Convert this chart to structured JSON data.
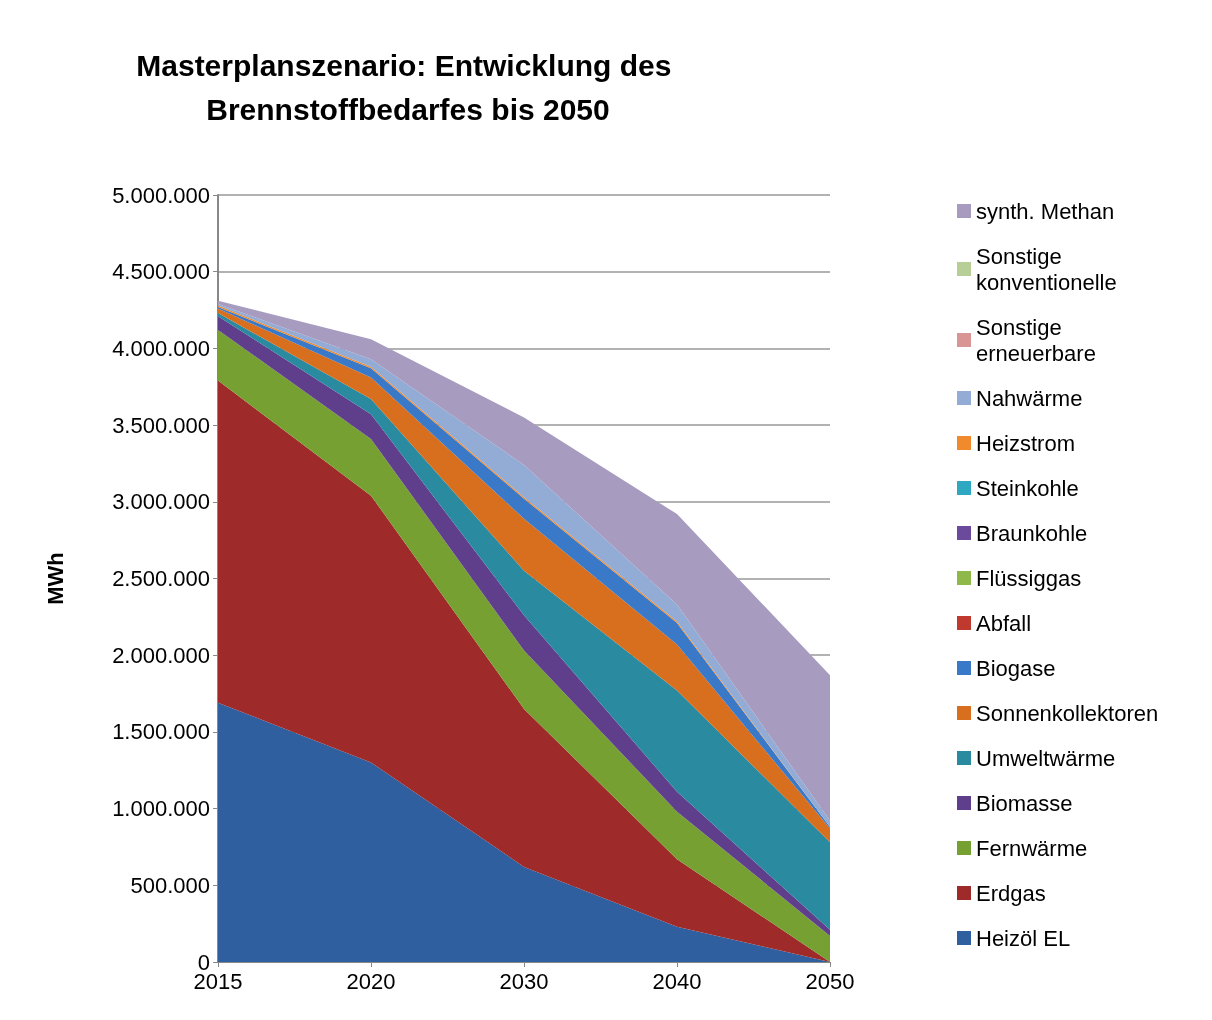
{
  "chart_data": {
    "type": "area",
    "stacked": true,
    "title": "Masterplanszenario: Entwicklung des Brennstoffbedarfes bis 2050",
    "ylabel": "MWh",
    "categories": [
      "2015",
      "2020",
      "2030",
      "2040",
      "2050"
    ],
    "ylim": [
      0,
      5000000
    ],
    "yticks": [
      {
        "value": 0,
        "label": "0"
      },
      {
        "value": 500000,
        "label": "500.000"
      },
      {
        "value": 1000000,
        "label": "1.000.000"
      },
      {
        "value": 1500000,
        "label": "1.500.000"
      },
      {
        "value": 2000000,
        "label": "2.000.000"
      },
      {
        "value": 2500000,
        "label": "2.500.000"
      },
      {
        "value": 3000000,
        "label": "3.000.000"
      },
      {
        "value": 3500000,
        "label": "3.500.000"
      },
      {
        "value": 4000000,
        "label": "4.000.000"
      },
      {
        "value": 4500000,
        "label": "4.500.000"
      },
      {
        "value": 5000000,
        "label": "5.000.000"
      }
    ],
    "grid": "y",
    "legend": "right",
    "series": [
      {
        "name": "Heizöl EL",
        "color": "#2f5f9e",
        "values": [
          1690000,
          1300000,
          620000,
          230000,
          0
        ]
      },
      {
        "name": "Erdgas",
        "color": "#9e2a2a",
        "values": [
          2100000,
          1740000,
          1030000,
          440000,
          0
        ]
      },
      {
        "name": "Fernwärme",
        "color": "#77a033",
        "values": [
          330000,
          370000,
          380000,
          310000,
          170000
        ]
      },
      {
        "name": "Biomasse",
        "color": "#5f3f8c",
        "values": [
          90000,
          160000,
          230000,
          130000,
          40000
        ]
      },
      {
        "name": "Umweltwärme",
        "color": "#2a8aa0",
        "values": [
          20000,
          100000,
          290000,
          660000,
          570000
        ]
      },
      {
        "name": "Sonnenkollektoren",
        "color": "#d86f1e",
        "values": [
          30000,
          140000,
          340000,
          300000,
          90000
        ]
      },
      {
        "name": "Biogase",
        "color": "#3a78c8",
        "values": [
          10000,
          60000,
          130000,
          140000,
          10000
        ]
      },
      {
        "name": "Abfall",
        "color": "#c0392f",
        "values": [
          null,
          null,
          null,
          null,
          null
        ]
      },
      {
        "name": "Flüssiggas",
        "color": "#8fb84a",
        "values": [
          null,
          null,
          null,
          null,
          null
        ]
      },
      {
        "name": "Braunkohle",
        "color": "#6b4a9c",
        "values": [
          null,
          null,
          null,
          null,
          null
        ]
      },
      {
        "name": "Steinkohle",
        "color": "#2ea7c0",
        "values": [
          null,
          null,
          null,
          null,
          null
        ]
      },
      {
        "name": "Heizstrom",
        "color": "#f08a2c",
        "values": [
          10000,
          10000,
          10000,
          10000,
          0
        ]
      },
      {
        "name": "Nahwärme",
        "color": "#93acd6",
        "values": [
          10000,
          50000,
          210000,
          110000,
          40000
        ]
      },
      {
        "name": "Sonstige erneuerbare",
        "color": "#d99594",
        "values": [
          null,
          null,
          null,
          null,
          null
        ]
      },
      {
        "name": "Sonstige konventionelle",
        "color": "#b7cf96",
        "values": [
          null,
          null,
          null,
          null,
          null
        ]
      },
      {
        "name": "synth. Methan",
        "color": "#a79bc0",
        "values": [
          20000,
          130000,
          310000,
          590000,
          950000
        ]
      }
    ]
  }
}
